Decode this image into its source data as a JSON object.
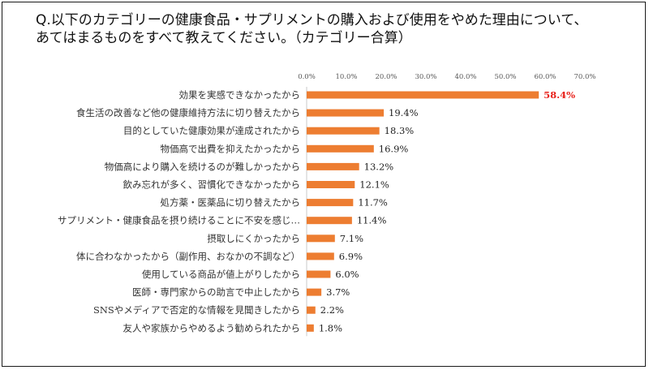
{
  "title": {
    "line1": "Q.以下のカテゴリーの健康食品・サプリメントの購入および使用をやめた理由について、",
    "line2": "あてはまるものをすべて教えてください。（カテゴリー合算）"
  },
  "colors": {
    "bar": "#ed7d31",
    "highlight": "#e8211a",
    "axis": "#c8c8c8"
  },
  "chart_data": {
    "type": "bar",
    "orientation": "horizontal",
    "title": "Q.以下のカテゴリーの健康食品・サプリメントの購入および使用をやめた理由について、あてはまるものをすべて教えてください。（カテゴリー合算）",
    "xlim": [
      0,
      70
    ],
    "xticks": [
      0,
      10,
      20,
      30,
      40,
      50,
      60,
      70
    ],
    "xtick_labels": [
      "0.0%",
      "10.0%",
      "20.0%",
      "30.0%",
      "40.0%",
      "50.0%",
      "60.0%",
      "70.0%"
    ],
    "tick_position": "top",
    "grid": false,
    "categories": [
      "効果を実感できなかったから",
      "食生活の改善など他の健康維持方法に切り替えたから",
      "目的としていた健康効果が達成されたから",
      "物価高で出費を抑えたかったから",
      "物価高により購入を続けるのが難しかったから",
      "飲み忘れが多く、習慣化できなかったから",
      "処方薬・医薬品に切り替えたから",
      "サプリメント・健康食品を摂り続けることに不安を感じ…",
      "摂取しにくかったから",
      "体に合わなかったから（副作用、おなかの不調など）",
      "使用している商品が値上がりしたから",
      "医師・専門家からの助言で中止したから",
      "SNSやメディアで否定的な情報を見聞きしたから",
      "友人や家族からやめるよう勧められたから"
    ],
    "values": [
      58.4,
      19.4,
      18.3,
      16.9,
      13.2,
      12.1,
      11.7,
      11.4,
      7.1,
      6.9,
      6.0,
      3.7,
      2.2,
      1.8
    ],
    "value_labels": [
      "58.4%",
      "19.4%",
      "18.3%",
      "16.9%",
      "13.2%",
      "12.1%",
      "11.7%",
      "11.4%",
      "7.1%",
      "6.9%",
      "6.0%",
      "3.7%",
      "2.2%",
      "1.8%"
    ],
    "highlight_index": 0
  }
}
